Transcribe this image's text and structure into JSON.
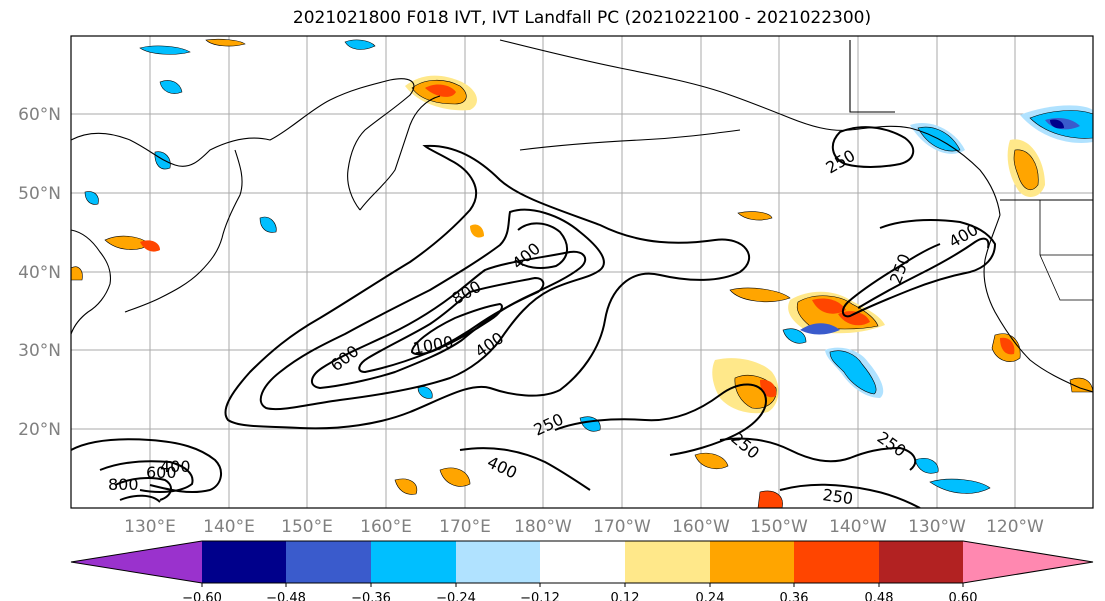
{
  "title": "2021021800 F018 IVT, IVT Landfall PC (2021022100 - 2021022300)",
  "latitude_labels": [
    "60°N",
    "50°N",
    "40°N",
    "30°N",
    "20°N"
  ],
  "longitude_labels": [
    "130°E",
    "140°E",
    "150°E",
    "160°E",
    "170°E",
    "180°W",
    "170°W",
    "160°W",
    "150°W",
    "140°W",
    "130°W",
    "120°W"
  ],
  "contour_labels": [
    "250",
    "400",
    "600",
    "800",
    "1000",
    "400",
    "600",
    "400",
    "250",
    "400",
    "250",
    "250",
    "250",
    "250",
    "250",
    "400",
    "600",
    "800"
  ],
  "colorbar": {
    "ticks": [
      "−0.60",
      "−0.48",
      "−0.36",
      "−0.24",
      "−0.12",
      "0.12",
      "0.24",
      "0.36",
      "0.48",
      "0.60"
    ],
    "colors": [
      "#9a32cd",
      "#00008b",
      "#3a5bcc",
      "#00bfff",
      "#b0e2ff",
      "#ffffff",
      "#ffe88a",
      "#ffa500",
      "#ff4500",
      "#b22222",
      "#ff88b0"
    ]
  }
}
